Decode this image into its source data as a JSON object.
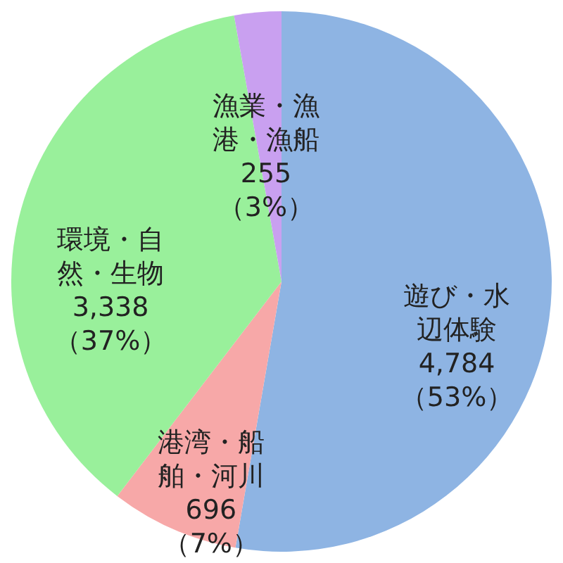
{
  "chart_data": {
    "type": "pie",
    "categories": [
      "遊び・水辺体験",
      "港湾・船舶・河川",
      "環境・自然・生物",
      "漁業・漁港・漁船"
    ],
    "values": [
      4784,
      696,
      3338,
      255
    ],
    "colors": [
      "#8eb4e3",
      "#f7a8a8",
      "#99f09b",
      "#c9a0f0"
    ],
    "value_labels": [
      "4,784（53%）",
      "696（7%）",
      "3,338（37%）",
      "255（3%）"
    ]
  }
}
